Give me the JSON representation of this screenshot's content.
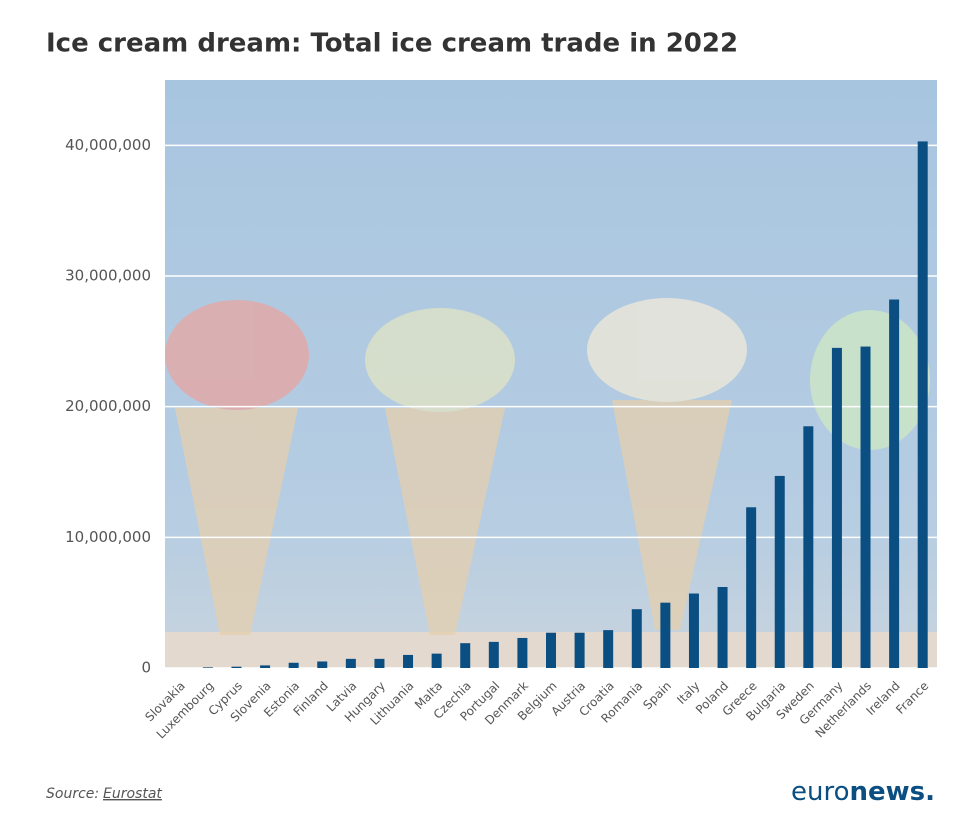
{
  "chart_data": {
    "type": "bar",
    "title": "Ice cream dream: Total ice cream trade in 2022",
    "categories": [
      "Slovakia",
      "Luxembourg",
      "Cyprus",
      "Slovenia",
      "Estonia",
      "Finland",
      "Latvia",
      "Hungary",
      "Lithuania",
      "Malta",
      "Czechia",
      "Portugal",
      "Denmark",
      "Belgium",
      "Austria",
      "Croatia",
      "Romania",
      "Spain",
      "Italy",
      "Poland",
      "Greece",
      "Bulgaria",
      "Sweden",
      "Germany",
      "Netherlands",
      "Ireland",
      "France"
    ],
    "values": [
      0,
      50000,
      100000,
      200000,
      400000,
      500000,
      700000,
      700000,
      1000000,
      1100000,
      1900000,
      2000000,
      2300000,
      2700000,
      2700000,
      2900000,
      4500000,
      5000000,
      5700000,
      6200000,
      12300000,
      14700000,
      18500000,
      24500000,
      24600000,
      28200000,
      40300000
    ],
    "color": "#0b4f82",
    "ylim": [
      0,
      45000000
    ],
    "yticks": [
      0,
      {
        "value": 10000000,
        "label": "10,000,000"
      },
      {
        "value": 20000000,
        "label": "20,000,000"
      },
      {
        "value": 30000000,
        "label": "30,000,000"
      },
      {
        "value": 40000000,
        "label": "40,000,000"
      }
    ],
    "grid": true,
    "source_label": "Source:",
    "source_link": "Eurostat",
    "logo": [
      "euro",
      "news."
    ]
  }
}
